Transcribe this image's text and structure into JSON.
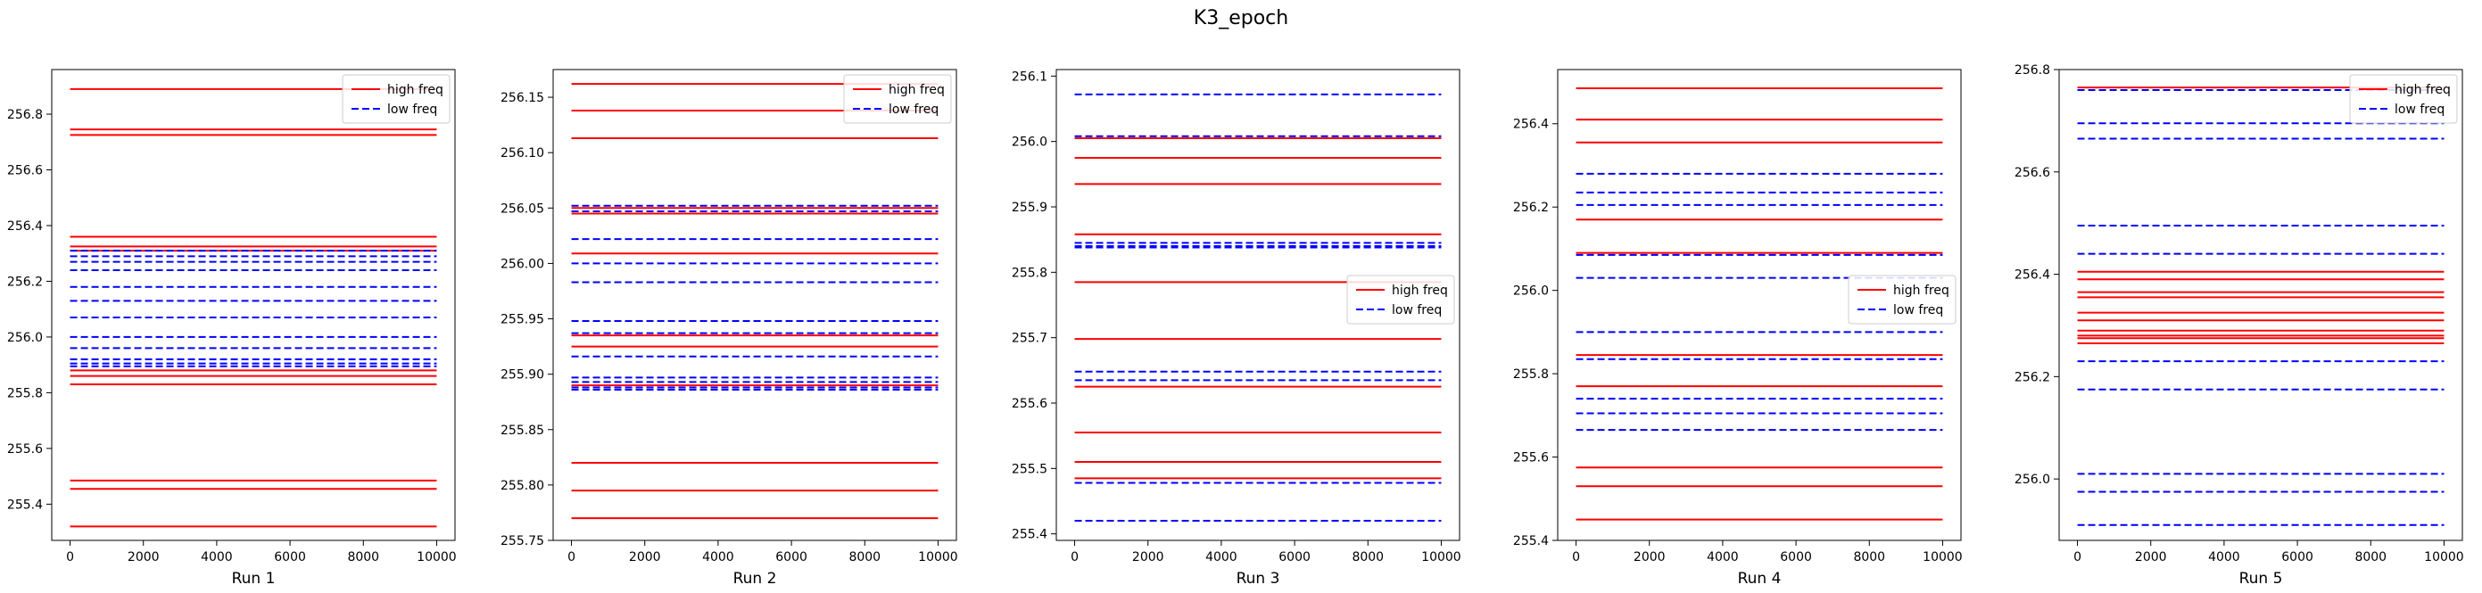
{
  "figure": {
    "title": "K3_epoch"
  },
  "colors": {
    "high": "#ff0000",
    "low": "#0000ff",
    "axes": "#000000"
  },
  "chart_data": [
    {
      "type": "line",
      "xlabel": "Run 1",
      "xlim": [
        -500,
        10500
      ],
      "ylim": [
        255.27,
        256.96
      ],
      "xticks": [
        0,
        2000,
        4000,
        6000,
        8000,
        10000
      ],
      "yticks": [
        255.4,
        255.6,
        255.8,
        256.0,
        256.2,
        256.4,
        256.6,
        256.8
      ],
      "ytick_labels": [
        "255.4",
        "255.6",
        "255.8",
        "256.0",
        "256.2",
        "256.4",
        "256.6",
        "256.8"
      ],
      "x": [
        0,
        10000
      ],
      "legend": {
        "position": "upper-right",
        "entries": [
          "high freq",
          "low freq"
        ]
      },
      "series": [
        {
          "name": "high freq",
          "style": "solid",
          "levels": [
            256.89,
            256.745,
            256.725,
            256.36,
            256.325,
            256.31,
            255.88,
            255.86,
            255.83,
            255.485,
            255.455,
            255.32
          ]
        },
        {
          "name": "low freq",
          "style": "dashed",
          "levels": [
            256.31,
            256.29,
            256.27,
            256.24,
            256.18,
            256.13,
            256.07,
            256.0,
            255.96,
            255.92,
            255.905,
            255.895
          ]
        }
      ]
    },
    {
      "type": "line",
      "xlabel": "Run 2",
      "xlim": [
        -500,
        10500
      ],
      "ylim": [
        255.75,
        256.175
      ],
      "xticks": [
        0,
        2000,
        4000,
        6000,
        8000,
        10000
      ],
      "yticks": [
        255.75,
        255.8,
        255.85,
        255.9,
        255.95,
        256.0,
        256.05,
        256.1,
        256.15
      ],
      "ytick_labels": [
        "255.75",
        "255.80",
        "255.85",
        "255.90",
        "255.95",
        "256.00",
        "256.05",
        "256.10",
        "256.15"
      ],
      "x": [
        0,
        10000
      ],
      "legend": {
        "position": "upper-right",
        "entries": [
          "high freq",
          "low freq"
        ]
      },
      "series": [
        {
          "name": "high freq",
          "style": "solid",
          "levels": [
            256.162,
            256.138,
            256.113,
            256.05,
            256.045,
            256.009,
            255.935,
            255.925,
            255.89,
            255.82,
            255.795,
            255.77
          ]
        },
        {
          "name": "low freq",
          "style": "dashed",
          "levels": [
            256.052,
            256.047,
            256.022,
            256.0,
            255.983,
            255.948,
            255.937,
            255.916,
            255.897,
            255.893,
            255.888,
            255.886
          ]
        }
      ]
    },
    {
      "type": "line",
      "xlabel": "Run 3",
      "xlim": [
        -500,
        10500
      ],
      "ylim": [
        255.39,
        256.11
      ],
      "xticks": [
        0,
        2000,
        4000,
        6000,
        8000,
        10000
      ],
      "yticks": [
        255.4,
        255.5,
        255.6,
        255.7,
        255.8,
        255.9,
        256.0,
        256.1
      ],
      "ytick_labels": [
        "255.4",
        "255.5",
        "255.6",
        "255.7",
        "255.8",
        "255.9",
        "256.0",
        "256.1"
      ],
      "x": [
        0,
        10000
      ],
      "legend": {
        "position": "center-right",
        "entries": [
          "high freq",
          "low freq"
        ]
      },
      "series": [
        {
          "name": "high freq",
          "style": "solid",
          "levels": [
            256.005,
            255.975,
            255.935,
            255.858,
            255.785,
            255.698,
            255.625,
            255.555,
            255.51,
            255.485
          ]
        },
        {
          "name": "low freq",
          "style": "dashed",
          "levels": [
            256.072,
            256.008,
            255.845,
            255.84,
            255.838,
            255.648,
            255.635,
            255.478,
            255.42
          ]
        }
      ]
    },
    {
      "type": "line",
      "xlabel": "Run 4",
      "xlim": [
        -500,
        10500
      ],
      "ylim": [
        255.4,
        256.53
      ],
      "xticks": [
        0,
        2000,
        4000,
        6000,
        8000,
        10000
      ],
      "yticks": [
        255.4,
        255.6,
        255.8,
        256.0,
        256.2,
        256.4
      ],
      "ytick_labels": [
        "255.4",
        "255.6",
        "255.8",
        "256.0",
        "256.2",
        "256.4"
      ],
      "x": [
        0,
        10000
      ],
      "legend": {
        "position": "center-right",
        "entries": [
          "high freq",
          "low freq"
        ]
      },
      "series": [
        {
          "name": "high freq",
          "style": "solid",
          "levels": [
            256.485,
            256.41,
            256.355,
            256.17,
            256.09,
            255.845,
            255.77,
            255.575,
            255.53,
            255.45
          ]
        },
        {
          "name": "low freq",
          "style": "dashed",
          "levels": [
            256.28,
            256.235,
            256.205,
            256.085,
            256.03,
            255.9,
            255.835,
            255.74,
            255.705,
            255.665
          ]
        }
      ]
    },
    {
      "type": "line",
      "xlabel": "Run 5",
      "xlim": [
        -500,
        10500
      ],
      "ylim": [
        255.88,
        256.8
      ],
      "xticks": [
        0,
        2000,
        4000,
        6000,
        8000,
        10000
      ],
      "yticks": [
        256.0,
        256.2,
        256.4,
        256.6,
        256.8
      ],
      "ytick_labels": [
        "256.0",
        "256.2",
        "256.4",
        "256.6",
        "256.8"
      ],
      "x": [
        0,
        10000
      ],
      "legend": {
        "position": "upper-right",
        "entries": [
          "high freq",
          "low freq"
        ]
      },
      "series": [
        {
          "name": "high freq",
          "style": "solid",
          "levels": [
            256.765,
            256.405,
            256.39,
            256.365,
            256.355,
            256.325,
            256.31,
            256.29,
            256.28,
            256.275,
            256.265
          ]
        },
        {
          "name": "low freq",
          "style": "dashed",
          "levels": [
            256.76,
            256.695,
            256.665,
            256.495,
            256.44,
            256.23,
            256.175,
            256.01,
            255.975,
            255.91
          ]
        }
      ]
    }
  ]
}
